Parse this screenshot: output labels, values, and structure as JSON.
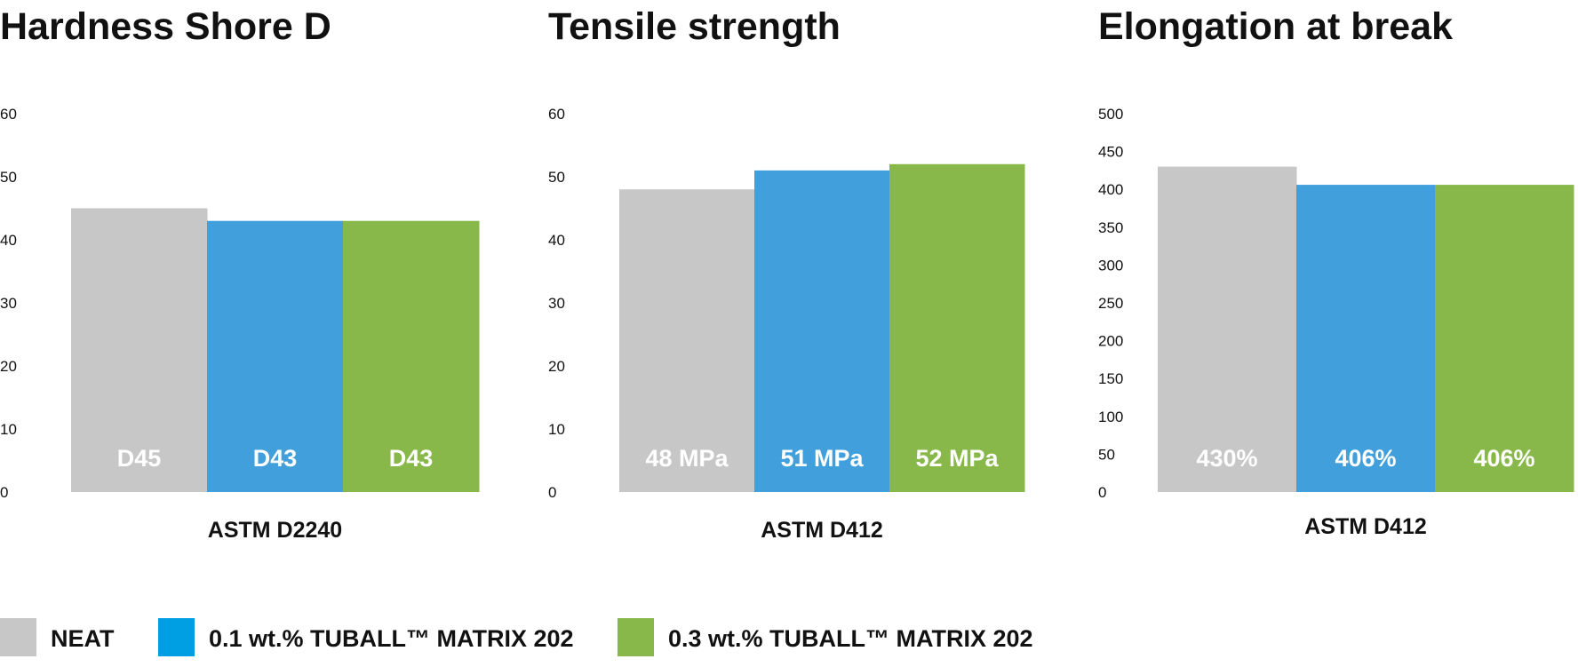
{
  "colors": {
    "neat": "#C6C7C6",
    "m01": "#419FDC",
    "m03": "#88B84A",
    "m01_legend": "#009FE3"
  },
  "legend": [
    {
      "label": "NEAT",
      "color": "#C6C7C6"
    },
    {
      "label": "0.1 wt.% TUBALL™ MATRIX 202",
      "color": "#009FE3"
    },
    {
      "label": "0.3 wt.% TUBALL™ MATRIX 202",
      "color": "#88B84A"
    }
  ],
  "chart_data": [
    {
      "type": "bar",
      "title": "Hardness Shore D",
      "xlabel": "ASTM D2240",
      "ylabel": "",
      "ylim": [
        0,
        60
      ],
      "yticks": [
        "0",
        "10",
        "20",
        "30",
        "40",
        "50",
        "60"
      ],
      "categories": [
        "NEAT",
        "0.1 wt.% TUBALL™ MATRIX 202",
        "0.3 wt.% TUBALL™ MATRIX 202"
      ],
      "values": [
        45,
        43,
        43
      ],
      "data_labels": [
        "D45",
        "D43",
        "D43"
      ],
      "grid": false,
      "legend_position": "bottom"
    },
    {
      "type": "bar",
      "title": "Tensile strength",
      "xlabel": "ASTM D412",
      "ylabel": "",
      "ylim": [
        0,
        60
      ],
      "yticks": [
        "0",
        "10",
        "20",
        "30",
        "40",
        "50",
        "60"
      ],
      "categories": [
        "NEAT",
        "0.1 wt.% TUBALL™ MATRIX 202",
        "0.3 wt.% TUBALL™ MATRIX 202"
      ],
      "values": [
        48,
        51,
        52
      ],
      "data_labels": [
        "48 MPa",
        "51 MPa",
        "52 MPa"
      ],
      "grid": false,
      "legend_position": "bottom"
    },
    {
      "type": "bar",
      "title": "Elongation at break",
      "xlabel": "ASTM D412",
      "ylabel": "",
      "ylim": [
        0,
        500
      ],
      "yticks": [
        "0",
        "50",
        "100",
        "150",
        "200",
        "250",
        "300",
        "350",
        "400",
        "450",
        "500"
      ],
      "categories": [
        "NEAT",
        "0.1 wt.% TUBALL™ MATRIX 202",
        "0.3 wt.% TUBALL™ MATRIX 202"
      ],
      "values": [
        430,
        406,
        406
      ],
      "data_labels": [
        "430%",
        "406%",
        "406%"
      ],
      "grid": false,
      "legend_position": "bottom"
    }
  ]
}
